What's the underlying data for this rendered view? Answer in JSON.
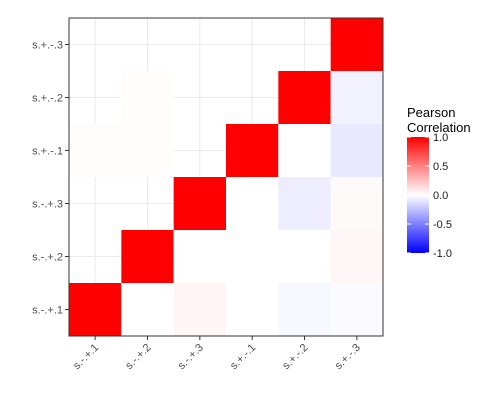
{
  "chart_data": {
    "type": "heatmap",
    "x_categories": [
      "s.-.+.1",
      "s.-.+.2",
      "s.-.+.3",
      "s.+.-.1",
      "s.+.-.2",
      "s.+.-.3"
    ],
    "y_categories": [
      "s.-.+.1",
      "s.-.+.2",
      "s.-.+.3",
      "s.+.-.1",
      "s.+.-.2",
      "s.+.-.3"
    ],
    "cells": [
      {
        "x": "s.-.+.1",
        "y": "s.-.+.1",
        "value": 1.0
      },
      {
        "x": "s.-.+.2",
        "y": "s.-.+.1",
        "value": 0.0
      },
      {
        "x": "s.-.+.3",
        "y": "s.-.+.1",
        "value": 0.04
      },
      {
        "x": "s.+.-.1",
        "y": "s.-.+.1",
        "value": 0.0
      },
      {
        "x": "s.+.-.2",
        "y": "s.-.+.1",
        "value": -0.03
      },
      {
        "x": "s.+.-.3",
        "y": "s.-.+.1",
        "value": -0.02
      },
      {
        "x": "s.-.+.2",
        "y": "s.-.+.2",
        "value": 1.0
      },
      {
        "x": "s.-.+.3",
        "y": "s.-.+.2",
        "value": 0.0
      },
      {
        "x": "s.+.-.1",
        "y": "s.-.+.2",
        "value": 0.0
      },
      {
        "x": "s.+.-.2",
        "y": "s.-.+.2",
        "value": 0.0
      },
      {
        "x": "s.+.-.3",
        "y": "s.-.+.2",
        "value": 0.03
      },
      {
        "x": "s.-.+.3",
        "y": "s.-.+.3",
        "value": 1.0
      },
      {
        "x": "s.+.-.1",
        "y": "s.-.+.3",
        "value": 0.0
      },
      {
        "x": "s.+.-.2",
        "y": "s.-.+.3",
        "value": -0.07
      },
      {
        "x": "s.+.-.3",
        "y": "s.-.+.3",
        "value": 0.02
      },
      {
        "x": "s.-.+.1",
        "y": "s.+.-.1",
        "value": 0.01
      },
      {
        "x": "s.-.+.2",
        "y": "s.+.-.1",
        "value": 0.01
      },
      {
        "x": "s.+.-.1",
        "y": "s.+.-.1",
        "value": 1.0
      },
      {
        "x": "s.+.-.2",
        "y": "s.+.-.1",
        "value": 0.0
      },
      {
        "x": "s.+.-.3",
        "y": "s.+.-.1",
        "value": -0.09
      },
      {
        "x": "s.-.+.2",
        "y": "s.+.-.2",
        "value": 0.01
      },
      {
        "x": "s.+.-.2",
        "y": "s.+.-.2",
        "value": 1.0
      },
      {
        "x": "s.+.-.3",
        "y": "s.+.-.2",
        "value": -0.05
      },
      {
        "x": "s.+.-.3",
        "y": "s.+.-.3",
        "value": 1.0
      }
    ],
    "color_scale": {
      "low": "#0000ff",
      "mid": "#ffffff",
      "high": "#ff0000",
      "limits": [
        -1,
        1
      ]
    },
    "legend": {
      "title_lines": [
        "Pearson",
        "Correlation"
      ],
      "ticks": [
        "1.0",
        "0.5",
        "0.0",
        "-0.5",
        "-1.0"
      ],
      "tick_values": [
        1.0,
        0.5,
        0.0,
        -0.5,
        -1.0
      ],
      "position": "right"
    },
    "x_label_rotation": 45,
    "grid": true
  }
}
